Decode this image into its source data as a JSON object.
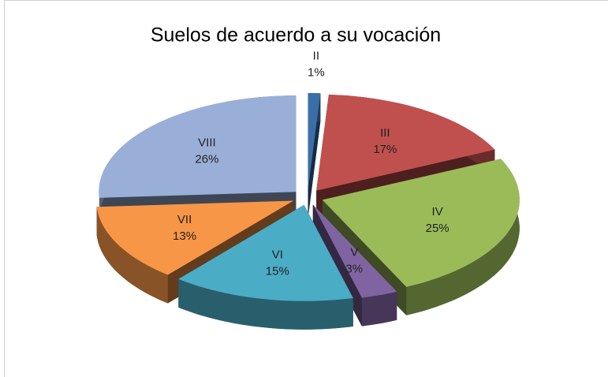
{
  "chart_data": {
    "type": "pie3d",
    "title": "Suelos de acuerdo a su vocación",
    "categories": [
      "II",
      "III",
      "IV",
      "V",
      "VI",
      "VII",
      "VIII"
    ],
    "values": [
      1,
      17,
      25,
      3,
      15,
      13,
      26
    ],
    "value_labels": [
      "1%",
      "17%",
      "25%",
      "3%",
      "15%",
      "13%",
      "26%"
    ],
    "colors": [
      "#3b6ea8",
      "#c0504d",
      "#9bbb59",
      "#8064a2",
      "#4bacc6",
      "#f79646",
      "#9aafd8"
    ]
  }
}
